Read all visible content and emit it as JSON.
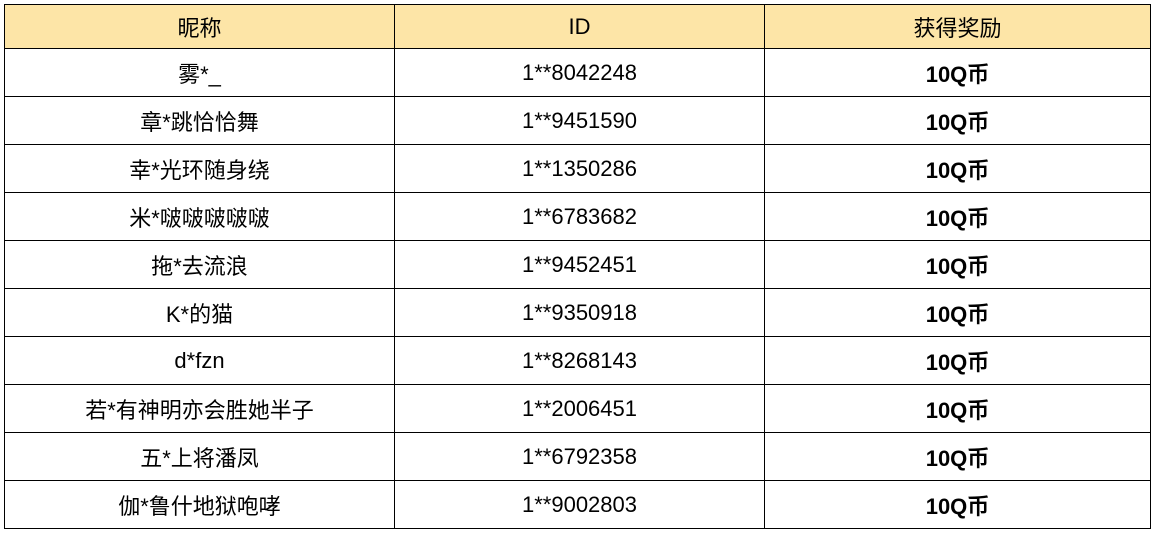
{
  "table": {
    "header_bg_color": "#fde5a7",
    "border_color": "#000000",
    "columns": [
      {
        "key": "nickname",
        "label": "昵称"
      },
      {
        "key": "id",
        "label": "ID"
      },
      {
        "key": "reward",
        "label": "获得奖励"
      }
    ],
    "rows": [
      {
        "nickname": "雾*_",
        "id": "1**8042248",
        "reward": "10Q币"
      },
      {
        "nickname": "章*跳恰恰舞",
        "id": "1**9451590",
        "reward": "10Q币"
      },
      {
        "nickname": "幸*光环随身绕",
        "id": "1**1350286",
        "reward": "10Q币"
      },
      {
        "nickname": "米*啵啵啵啵啵",
        "id": "1**6783682",
        "reward": "10Q币"
      },
      {
        "nickname": "拖*去流浪",
        "id": "1**9452451",
        "reward": "10Q币"
      },
      {
        "nickname": "K*的猫",
        "id": "1**9350918",
        "reward": "10Q币"
      },
      {
        "nickname": "d*fzn",
        "id": "1**8268143",
        "reward": "10Q币"
      },
      {
        "nickname": "若*有神明亦会胜她半子",
        "id": "1**2006451",
        "reward": "10Q币"
      },
      {
        "nickname": "五*上将潘凤",
        "id": "1**6792358",
        "reward": "10Q币"
      },
      {
        "nickname": "伽*鲁什地狱咆哮",
        "id": "1**9002803",
        "reward": "10Q币"
      }
    ]
  }
}
